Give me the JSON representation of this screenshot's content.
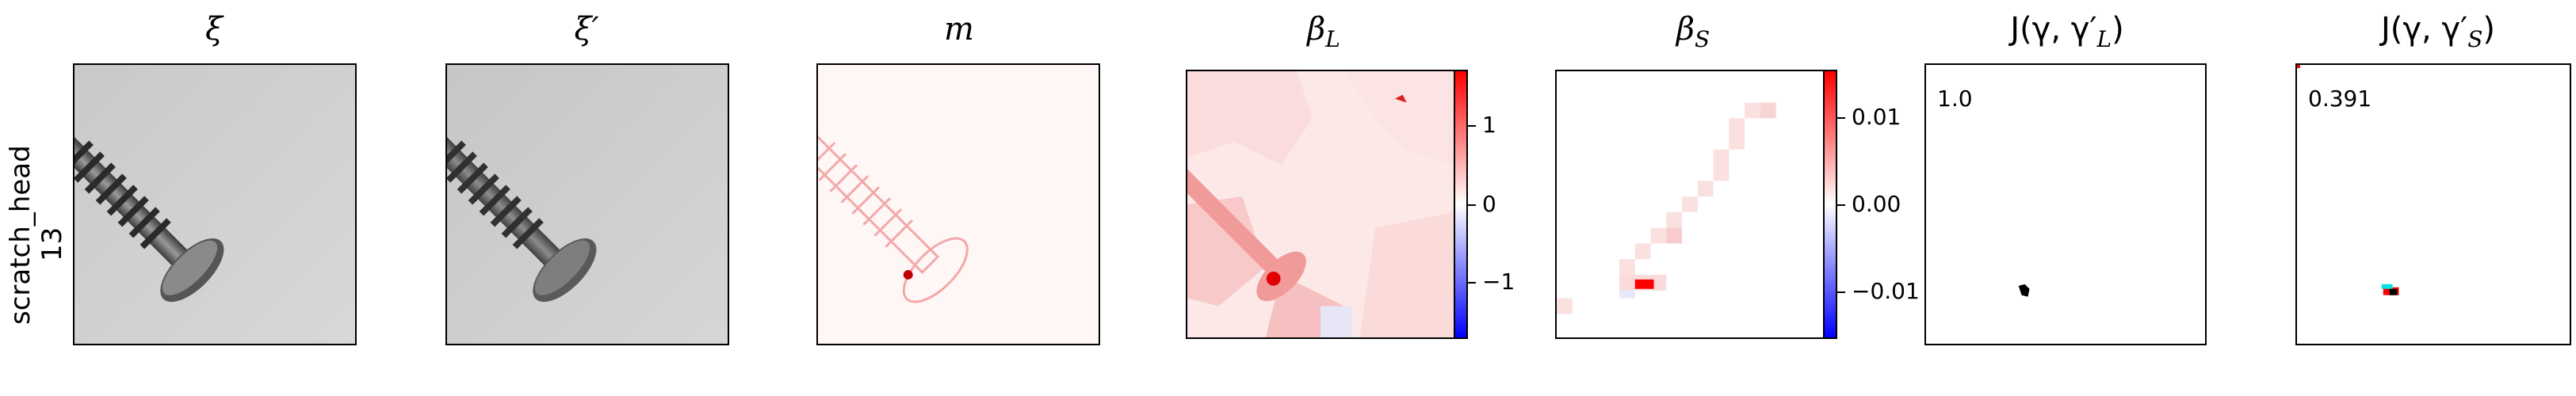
{
  "row_label": {
    "category": "scratch_head",
    "index": "13"
  },
  "panels": [
    {
      "title": "ξ"
    },
    {
      "title": "ξ′"
    },
    {
      "title": "m"
    },
    {
      "title": "β",
      "sub": "L"
    },
    {
      "title": "β",
      "sub": "S"
    },
    {
      "title": "J(γ, γ′",
      "sub": "L",
      "suffix": ")"
    },
    {
      "title": "J(γ, γ′",
      "sub": "S",
      "suffix": ")"
    }
  ],
  "colorbar_L": {
    "ticks": [
      "1",
      "0",
      "−1"
    ],
    "values": [
      1,
      0,
      -1
    ],
    "colors": {
      "high": "#ff0000",
      "mid": "#ffffff",
      "low": "#0000ff"
    }
  },
  "colorbar_S": {
    "ticks": [
      "0.01",
      "0.00",
      "−0.01"
    ],
    "values": [
      0.01,
      0.0,
      -0.01
    ],
    "colors": {
      "high": "#ff0000",
      "mid": "#ffffff",
      "low": "#0000ff"
    }
  },
  "jaccard_L": {
    "value": "1.0"
  },
  "jaccard_S": {
    "value": "0.391"
  }
}
